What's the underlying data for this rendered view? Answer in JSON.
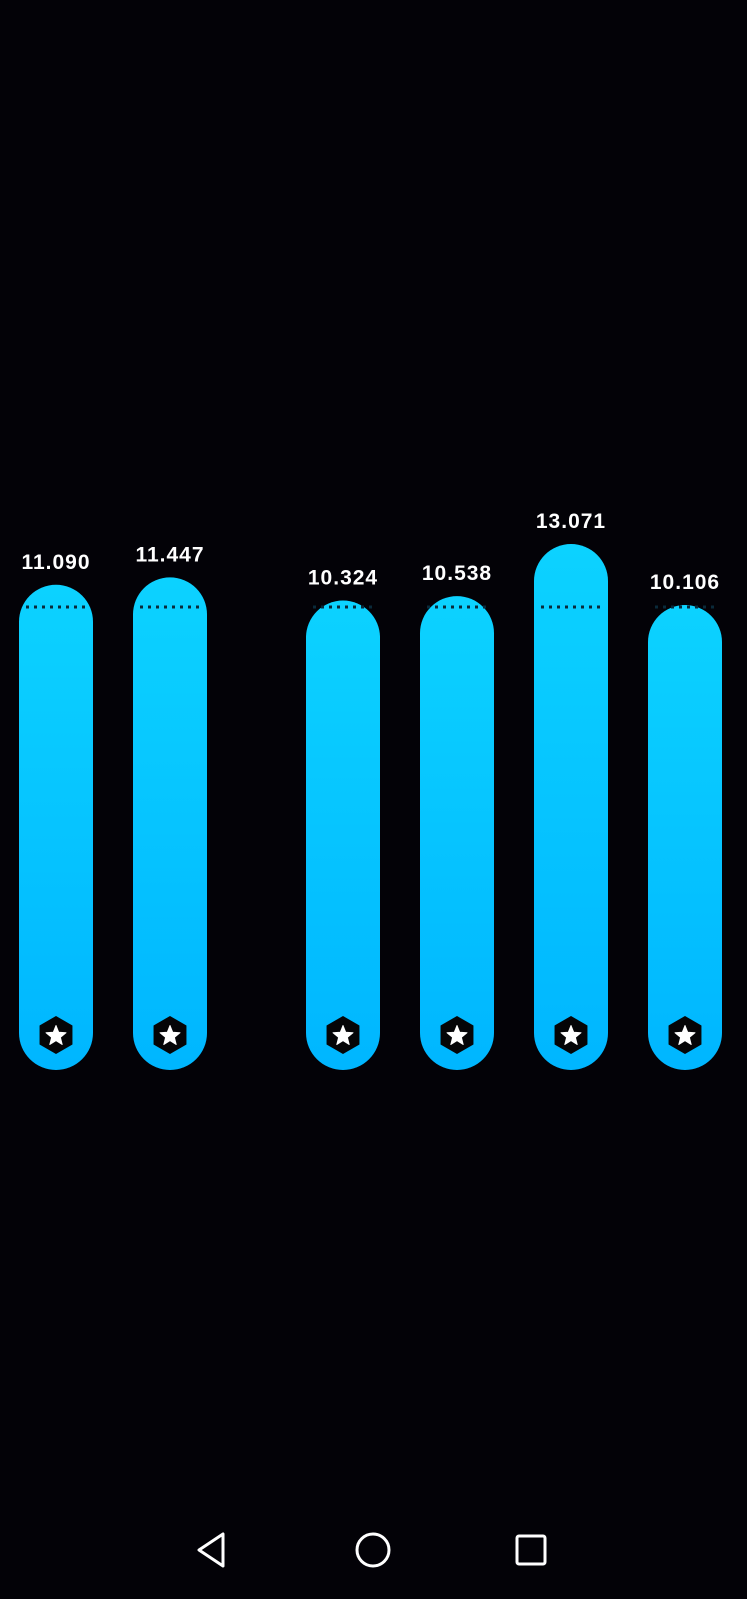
{
  "colors": {
    "background": "#030207",
    "bar_top": "#0cd2ff",
    "bar_bottom": "#00b6ff",
    "label": "#ffffff",
    "dotted_line": "#0a2a3a",
    "badge_bg": "#050507",
    "badge_star": "#ffffff",
    "nav_icon": "#ffffff"
  },
  "chart_data": {
    "type": "bar",
    "values": [
      11.09,
      11.447,
      10.324,
      10.538,
      13.071,
      10.106
    ],
    "value_labels": [
      "11.090",
      "11.447",
      "10.324",
      "10.538",
      "13.071",
      "10.106"
    ],
    "reference_line": "dotted",
    "marker_icon": "star-badge-icon",
    "groups": [
      [
        0,
        1
      ],
      [
        2,
        3,
        4,
        5
      ]
    ]
  },
  "nav": {
    "back_icon": "triangle-back-icon",
    "home_icon": "circle-home-icon",
    "recents_icon": "square-recents-icon"
  }
}
